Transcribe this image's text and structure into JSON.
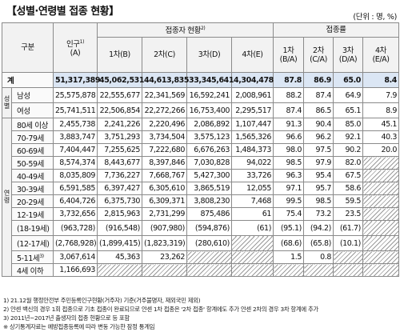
{
  "title": "【성별·연령별 접종 현황】",
  "unit": "(단위 : 명, %)",
  "headers": {
    "category": "구분",
    "population": "인구",
    "population_sup": "1)",
    "population_code": "(A)",
    "vaccinated_group": "접종자 현황",
    "vaccinated_sup": "2)",
    "rate_group": "접종률",
    "dose_cols": [
      "1차(B)",
      "2차(C)",
      "3차(D)",
      "4차(E)"
    ],
    "rate_cols": [
      {
        "line1": "1차",
        "line2": "(B/A)"
      },
      {
        "line1": "2차",
        "line2": "(C/A)"
      },
      {
        "line1": "3차",
        "line2": "(D/A)"
      },
      {
        "line1": "4차",
        "line2": "(E/A)"
      }
    ]
  },
  "groups": {
    "sex": "성별",
    "age": "연령"
  },
  "total": {
    "label": "계",
    "values": [
      "51,317,389",
      "45,062,531",
      "44,613,835",
      "33,345,641",
      "4,304,478",
      "87.8",
      "86.9",
      "65.0",
      "8.4"
    ]
  },
  "sex_rows": [
    {
      "label": "남성",
      "values": [
        "25,575,878",
        "22,555,677",
        "22,341,569",
        "16,592,241",
        "2,008,961",
        "88.2",
        "87.4",
        "64.9",
        "7.9"
      ]
    },
    {
      "label": "여성",
      "values": [
        "25,741,511",
        "22,506,854",
        "22,272,266",
        "16,753,400",
        "2,295,517",
        "87.4",
        "86.5",
        "65.1",
        "8.9"
      ]
    }
  ],
  "age_rows": [
    {
      "label": "80세 이상",
      "values": [
        "2,455,738",
        "2,241,226",
        "2,220,496",
        "2,086,892",
        "1,107,447",
        "91.3",
        "90.4",
        "85.0",
        "45.1"
      ]
    },
    {
      "label": "70-79세",
      "values": [
        "3,883,747",
        "3,751,293",
        "3,734,504",
        "3,575,123",
        "1,565,326",
        "96.6",
        "96.2",
        "92.1",
        "40.3"
      ]
    },
    {
      "label": "60-69세",
      "values": [
        "7,404,447",
        "7,255,625",
        "7,222,680",
        "6,676,263",
        "1,484,373",
        "98.0",
        "97.5",
        "90.2",
        "20.0"
      ]
    },
    {
      "label": "50-59세",
      "values": [
        "8,574,374",
        "8,443,677",
        "8,397,846",
        "7,030,828",
        "94,022",
        "98.5",
        "97.9",
        "82.0",
        ""
      ]
    },
    {
      "label": "40-49세",
      "values": [
        "8,035,809",
        "7,736,227",
        "7,668,767",
        "5,427,300",
        "33,726",
        "96.3",
        "95.4",
        "67.5",
        ""
      ]
    },
    {
      "label": "30-39세",
      "values": [
        "6,591,585",
        "6,397,427",
        "6,305,610",
        "3,865,519",
        "12,055",
        "97.1",
        "95.7",
        "58.6",
        ""
      ]
    },
    {
      "label": "20-29세",
      "values": [
        "6,404,726",
        "6,375,730",
        "6,309,371",
        "3,808,230",
        "7,468",
        "99.5",
        "98.5",
        "59.5",
        ""
      ]
    },
    {
      "label": "12-19세",
      "values": [
        "3,732,656",
        "2,815,963",
        "2,731,299",
        "875,486",
        "61",
        "75.4",
        "73.2",
        "23.5",
        ""
      ]
    }
  ],
  "paren_rows": [
    {
      "label": "(18-19세)",
      "values": [
        "(963,728)",
        "(916,548)",
        "(907,980)",
        "(594,876)",
        "(61)",
        "(95.1)",
        "(94.2)",
        "(61.7)",
        ""
      ]
    },
    {
      "label": "(12-17세)",
      "values": [
        "(2,768,928)",
        "(1,899,415)",
        "(1,823,319)",
        "(280,610)",
        "",
        "(68.6)",
        "(65.8)",
        "(10.1)",
        ""
      ]
    }
  ],
  "young_rows": [
    {
      "label": "5-11세",
      "label_sup": "3)",
      "values": [
        "3,067,614",
        "45,363",
        "23,262",
        "",
        "",
        "1.5",
        "0.8",
        "",
        ""
      ]
    },
    {
      "label": "4세 이하",
      "values": [
        "1,166,693",
        "",
        "",
        "",
        "",
        "",
        "",
        "",
        ""
      ]
    }
  ],
  "notes": [
    "1)  21.12월 행정안전부 주민등록인구현황(거주자) 기준(거주불명자, 재외국민 제외)",
    "2)  얀센 백신의 경우 1회 접종으로 기초 접종이 완료되므로 얀센 1차 접종은 '2차 접종' 항계에도 추가 얀센 2차의 경우 3차 항계에 추가",
    "3)  2011년~2017년 출생자의 접종 현황으로 등 포함",
    "※ 상기통계자료는 예방접종등록에 따라 변동 가능한 잠정 통계임"
  ]
}
